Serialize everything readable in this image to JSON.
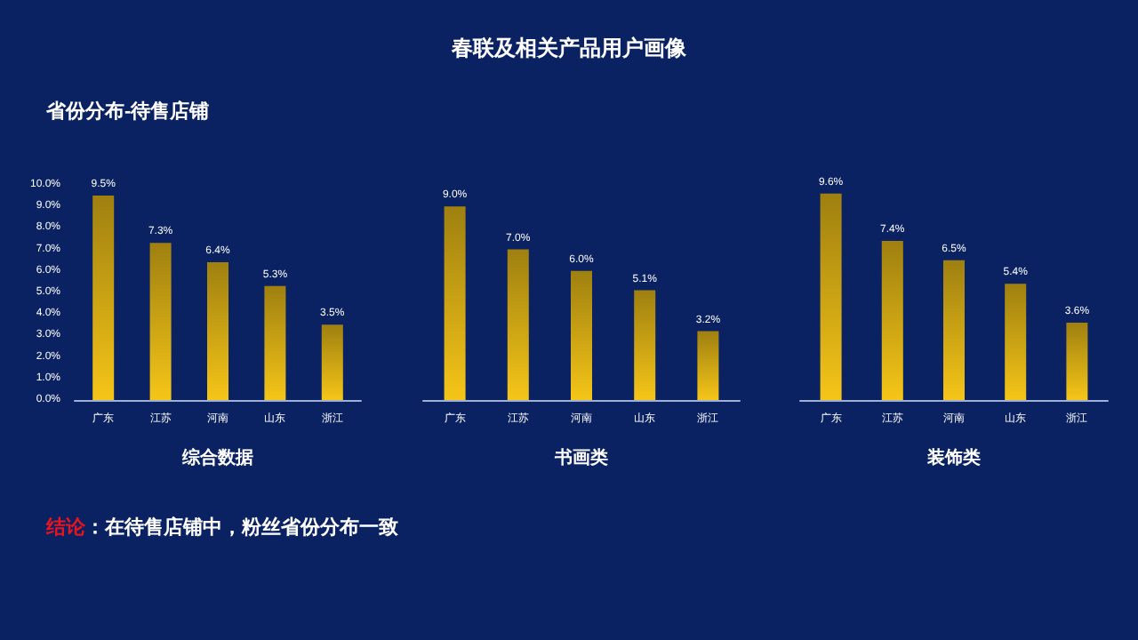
{
  "chart_data": [
    {
      "type": "bar",
      "subtitle": "省份分布-待售店铺",
      "xlabel": "综合数据",
      "categories": [
        "广东",
        "江苏",
        "河南",
        "山东",
        "浙江"
      ],
      "values": [
        9.5,
        7.3,
        6.4,
        5.3,
        3.5
      ],
      "value_labels": [
        "9.5%",
        "7.3%",
        "6.4%",
        "5.3%",
        "3.5%"
      ],
      "color": "#f5c518",
      "ylim": [
        0,
        10
      ],
      "yticks": [
        {
          "value": 0,
          "label": "0.0%"
        },
        {
          "value": 1,
          "label": "1.0%"
        },
        {
          "value": 2,
          "label": "2.0%"
        },
        {
          "value": 3,
          "label": "3.0%"
        },
        {
          "value": 4,
          "label": "4.0%"
        },
        {
          "value": 5,
          "label": "5.0%"
        },
        {
          "value": 6,
          "label": "6.0%"
        },
        {
          "value": 7,
          "label": "7.0%"
        },
        {
          "value": 8,
          "label": "8.0%"
        },
        {
          "value": 9,
          "label": "9.0%"
        },
        {
          "value": 10,
          "label": "10.0%"
        }
      ],
      "grid": false,
      "annotations": [
        "结论",
        "：在待售店铺中，粉丝省份分布一致"
      ]
    },
    {
      "type": "bar",
      "title": "春联及相关产品用户画像",
      "xlabel": "书画类",
      "categories": [
        "广东",
        "江苏",
        "河南",
        "山东",
        "浙江"
      ],
      "values": [
        9.0,
        7.0,
        6.0,
        5.1,
        3.2
      ],
      "value_labels": [
        "9.0%",
        "7.0%",
        "6.0%",
        "5.1%",
        "3.2%"
      ],
      "color": "#f5c518",
      "ylim": [
        0,
        10
      ],
      "tick_labels": "x",
      "grid": false
    },
    {
      "type": "bar",
      "xlabel": "装饰类",
      "categories": [
        "广东",
        "江苏",
        "河南",
        "山东",
        "浙江"
      ],
      "values": [
        9.6,
        7.4,
        6.5,
        5.4,
        3.6
      ],
      "value_labels": [
        "9.6%",
        "7.4%",
        "6.5%",
        "5.4%",
        "3.6%"
      ],
      "color": "#f5c518",
      "ylim": [
        0,
        10
      ],
      "tick_labels": "x",
      "grid": false
    }
  ]
}
